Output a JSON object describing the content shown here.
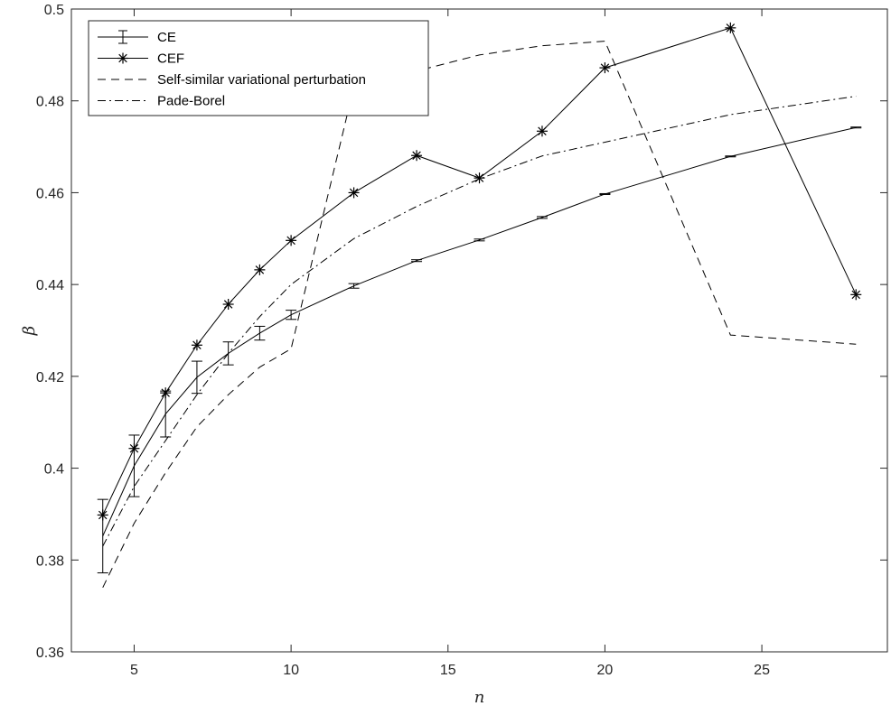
{
  "chart_data": {
    "type": "line",
    "xlabel": "n",
    "ylabel": "β",
    "xlim": [
      3,
      29
    ],
    "ylim": [
      0.36,
      0.5
    ],
    "xticks": [
      5,
      10,
      15,
      20,
      25
    ],
    "yticks": [
      0.36,
      0.38,
      0.4,
      0.42,
      0.44,
      0.46,
      0.48,
      0.5
    ],
    "xtick_labels": [
      "5",
      "10",
      "15",
      "20",
      "25"
    ],
    "ytick_labels": [
      "0.36",
      "0.38",
      "0.4",
      "0.42",
      "0.44",
      "0.46",
      "0.48",
      "0.5"
    ],
    "grid": false,
    "box": true,
    "legend_position": "top-left",
    "series": [
      {
        "name": "CE",
        "style": "solid-errorbar",
        "x": [
          4,
          5,
          6,
          7,
          8,
          9,
          10,
          12,
          14,
          16,
          18,
          20,
          24,
          28
        ],
        "y": [
          0.3852,
          0.4005,
          0.4118,
          0.4198,
          0.425,
          0.4294,
          0.4334,
          0.4397,
          0.4452,
          0.4497,
          0.4546,
          0.4597,
          0.4679,
          0.4742
        ],
        "err": [
          0.008,
          0.0067,
          0.005,
          0.0035,
          0.0025,
          0.0015,
          0.001,
          0.0005,
          0.0002,
          0.0002,
          0.0002,
          0.0001,
          0.0001,
          0.0001
        ]
      },
      {
        "name": "CEF",
        "style": "solid-asterisk",
        "x": [
          4,
          5,
          6,
          7,
          8,
          9,
          10,
          12,
          14,
          16,
          18,
          20,
          24,
          28
        ],
        "y": [
          0.3898,
          0.4043,
          0.4164,
          0.4268,
          0.4357,
          0.4432,
          0.4496,
          0.46,
          0.4681,
          0.4632,
          0.4734,
          0.4872,
          0.4959,
          0.4378
        ]
      },
      {
        "name": "Self-similar variational perturbation",
        "style": "dashed",
        "x": [
          4,
          5,
          6,
          7,
          8,
          9,
          10,
          12,
          16,
          18,
          20,
          24,
          28
        ],
        "y": [
          0.374,
          0.388,
          0.399,
          0.409,
          0.416,
          0.422,
          0.426,
          0.483,
          0.49,
          0.492,
          0.493,
          0.429,
          0.427
        ]
      },
      {
        "name": "Pade-Borel",
        "style": "dashdot",
        "x": [
          4,
          5,
          6,
          7,
          8,
          9,
          10,
          12,
          14,
          16,
          18,
          20,
          24,
          28
        ],
        "y": [
          0.383,
          0.396,
          0.406,
          0.416,
          0.425,
          0.433,
          0.44,
          0.45,
          0.457,
          0.463,
          0.468,
          0.471,
          0.477,
          0.481
        ]
      }
    ]
  }
}
